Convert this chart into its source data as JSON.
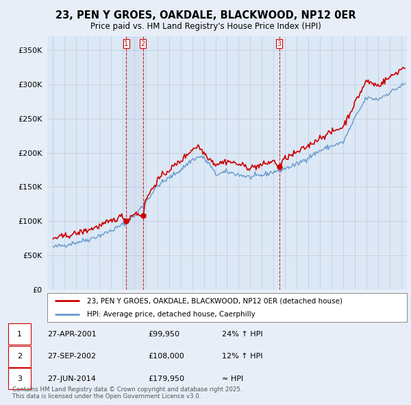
{
  "title": "23, PEN Y GROES, OAKDALE, BLACKWOOD, NP12 0ER",
  "subtitle": "Price paid vs. HM Land Registry's House Price Index (HPI)",
  "legend_line1": "23, PEN Y GROES, OAKDALE, BLACKWOOD, NP12 0ER (detached house)",
  "legend_line2": "HPI: Average price, detached house, Caerphilly",
  "transactions": [
    {
      "label": "1",
      "date": "27-APR-2001",
      "price": 99950,
      "hpi_note": "24% ↑ HPI"
    },
    {
      "label": "2",
      "date": "27-SEP-2002",
      "price": 108000,
      "hpi_note": "12% ↑ HPI"
    },
    {
      "label": "3",
      "date": "27-JUN-2014",
      "price": 179950,
      "hpi_note": "≈ HPI"
    }
  ],
  "vline_dates": [
    2001.32,
    2002.74,
    2014.49
  ],
  "ylabel_ticks": [
    0,
    50000,
    100000,
    150000,
    200000,
    250000,
    300000,
    350000
  ],
  "ylim": [
    0,
    370000
  ],
  "xlim": [
    1994.5,
    2025.5
  ],
  "property_color": "#cc0000",
  "hpi_color": "#6699cc",
  "background_color": "#e8eef8",
  "plot_bg_color": "#dce8f5",
  "grid_color": "#c0c8d8",
  "footer_text": "Contains HM Land Registry data © Crown copyright and database right 2025.\nThis data is licensed under the Open Government Licence v3.0.",
  "hpi_anchors_t": [
    1995.0,
    1996.0,
    1997.0,
    1998.0,
    1999.0,
    2000.0,
    2001.0,
    2002.0,
    2003.0,
    2004.0,
    2005.0,
    2006.0,
    2007.0,
    2007.8,
    2008.5,
    2009.0,
    2010.0,
    2011.0,
    2012.0,
    2013.0,
    2014.0,
    2015.0,
    2016.0,
    2017.0,
    2018.0,
    2019.0,
    2020.0,
    2021.0,
    2022.0,
    2023.0,
    2024.0,
    2025.25
  ],
  "hpi_anchors_v": [
    62000,
    65000,
    69000,
    73000,
    79000,
    86000,
    95000,
    108000,
    128000,
    152000,
    163000,
    175000,
    190000,
    195000,
    183000,
    168000,
    172000,
    168000,
    164000,
    167000,
    172000,
    177000,
    183000,
    193000,
    203000,
    210000,
    215000,
    250000,
    280000,
    278000,
    288000,
    300000
  ],
  "prop_anchors_t": [
    1995.0,
    1996.0,
    1997.0,
    1998.0,
    1999.0,
    2000.0,
    2001.0,
    2001.32,
    2002.0,
    2002.74,
    2003.0,
    2004.0,
    2005.0,
    2006.0,
    2007.0,
    2007.5,
    2008.0,
    2009.0,
    2010.0,
    2011.0,
    2012.0,
    2013.0,
    2014.0,
    2014.49,
    2015.0,
    2016.0,
    2017.0,
    2018.0,
    2019.0,
    2020.0,
    2021.0,
    2022.0,
    2023.0,
    2024.0,
    2025.25
  ],
  "prop_anchors_v": [
    75000,
    78000,
    82000,
    87000,
    93000,
    100000,
    108000,
    99950,
    112000,
    108000,
    132000,
    160000,
    175000,
    188000,
    205000,
    210000,
    200000,
    183000,
    188000,
    183000,
    178000,
    182000,
    188000,
    179950,
    192000,
    200000,
    210000,
    222000,
    230000,
    238000,
    272000,
    305000,
    298000,
    310000,
    325000
  ]
}
